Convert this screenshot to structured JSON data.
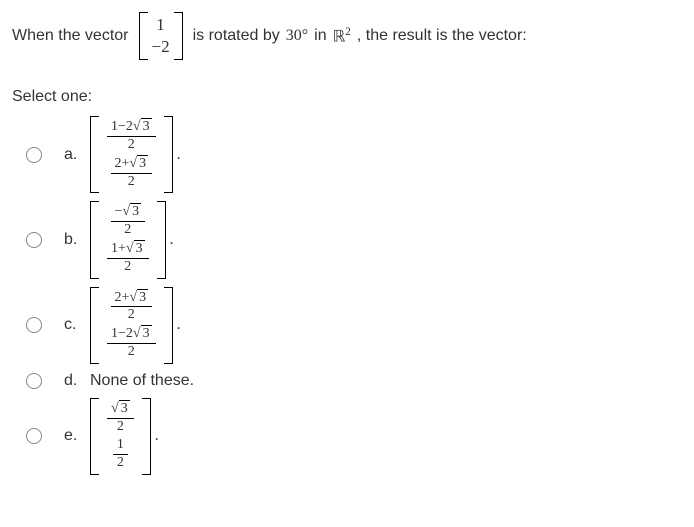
{
  "question": {
    "part1": "When the vector",
    "vec_top": "1",
    "vec_bot": "−2",
    "part2": "is rotated by",
    "degree": "30°",
    "in_word": "in",
    "space": "ℝ",
    "space_sup": "2",
    "part3": ", the result is the vector:"
  },
  "select_one": "Select one:",
  "option_a": {
    "label": "a.",
    "top_num": "1−2√3",
    "top_den": "2",
    "bot_num": "2+√3",
    "bot_den": "2",
    "trail": "."
  },
  "option_b": {
    "label": "b.",
    "top_num": "−√3",
    "top_den": "2",
    "bot_num": "1+√3",
    "bot_den": "2",
    "trail": "."
  },
  "option_c": {
    "label": "c.",
    "top_num": "2+√3",
    "top_den": "2",
    "bot_num": "1−2√3",
    "bot_den": "2",
    "trail": "."
  },
  "option_d": {
    "label": "d.",
    "text": "None of these."
  },
  "option_e": {
    "label": "e.",
    "top_num": "√3",
    "top_den": "2",
    "bot_num": "1",
    "bot_den": "2",
    "trail": "."
  }
}
